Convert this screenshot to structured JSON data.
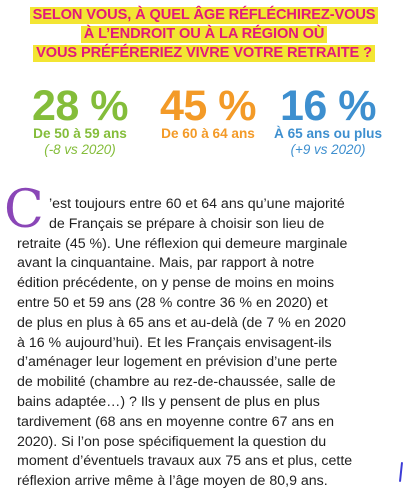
{
  "title": {
    "lines": [
      "SELON VOUS, À QUEL ÂGE RÉFLÉCHIREZ-VOUS",
      "À L’ENDROIT OU À LA RÉGION OÙ",
      "VOUS PRÉFÉRERIEZ VIVRE VOTRE RETRAITE ?"
    ]
  },
  "stats": [
    {
      "percent": "28 %",
      "label": "De 50 à 59 ans",
      "note": "(-8 vs 2020)",
      "color": "#84bd3a"
    },
    {
      "percent": "45 %",
      "label": "De 60 à 64 ans",
      "note": "",
      "color": "#f39a27"
    },
    {
      "percent": "16 %",
      "label": "À 65 ans ou plus",
      "note": "(+9 vs 2020)",
      "color": "#3d8fcf"
    }
  ],
  "colors": {
    "title_text": "#e2187a",
    "title_highlight": "#f3e533",
    "dropcap": "#8a46b7",
    "note": "#6b6b6b"
  },
  "article": {
    "dropcap": "C",
    "lines": [
      "’est toujours entre 60 et 64 ans qu’une majorité",
      "de Français se prépare à choisir son lieu de",
      "retraite (45 %). Une réflexion qui demeure marginale",
      "avant la cinquantaine. Mais, par rapport à notre",
      "édition précédente, on y pense de moins en moins",
      "entre 50 et 59 ans (28 % contre 36 % en 2020) et",
      "de plus en plus à 65 ans et au-delà (de 7 % en 2020",
      "à 16 % aujourd’hui). Et les Français envisagent-ils",
      "d’aménager leur logement en prévision d’une perte",
      "de mobilité (chambre au rez-de-chaussée, salle de",
      "bains adaptée…) ? Ils y pensent de plus en plus",
      "tardivement (68 ans en moyenne contre 67 ans en",
      "2020). Si l’on pose spécifiquement la question du",
      "moment d’éventuels travaux aux 75 ans et plus, cette",
      "réflexion arrive même à l’âge moyen de 80,9 ans."
    ]
  }
}
